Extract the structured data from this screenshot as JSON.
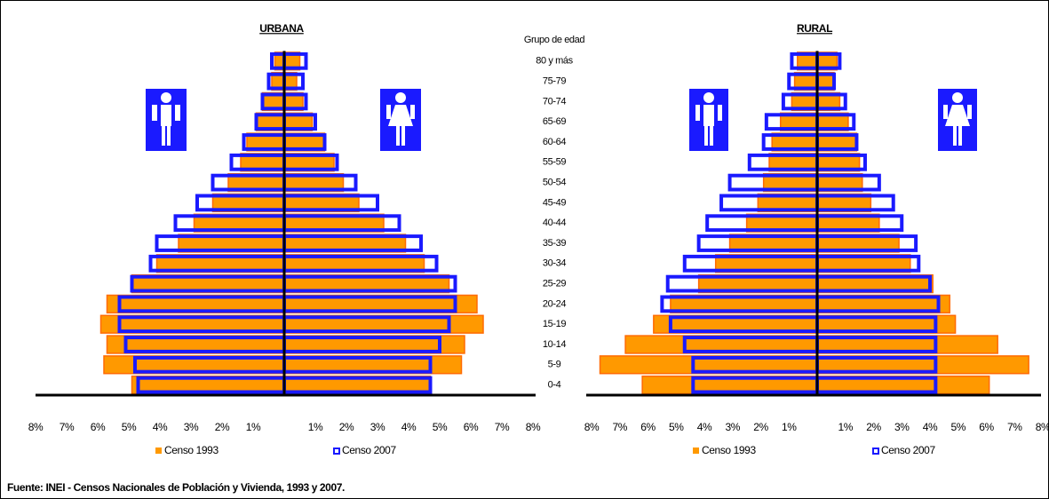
{
  "age_axis": {
    "title": "Grupo de edad",
    "categories": [
      "0-4",
      "5-9",
      "10-14",
      "15-19",
      "20-24",
      "25-29",
      "30-34",
      "35-39",
      "40-44",
      "45-49",
      "50-54",
      "55-59",
      "60-64",
      "65-69",
      "70-74",
      "75-79",
      "80 y más"
    ]
  },
  "chart_data": [
    {
      "type": "pyramid",
      "title": "URBANA",
      "xlim": [
        0,
        8
      ],
      "xticks": [
        {
          "value": 1,
          "label": "1%"
        },
        {
          "value": 2,
          "label": "2%"
        },
        {
          "value": 3,
          "label": "3%"
        },
        {
          "value": 4,
          "label": "4%"
        },
        {
          "value": 5,
          "label": "5%"
        },
        {
          "value": 6,
          "label": "6%"
        },
        {
          "value": 7,
          "label": "7%"
        },
        {
          "value": 8,
          "label": "8%"
        }
      ],
      "series": [
        {
          "name": "Censo 1993",
          "color": "#ff9900",
          "style": "filled",
          "male": [
            4.9,
            5.8,
            5.7,
            5.9,
            5.7,
            4.9,
            4.1,
            3.4,
            2.9,
            2.3,
            1.8,
            1.4,
            1.2,
            0.9,
            0.7,
            0.4,
            0.3
          ],
          "female": [
            4.7,
            5.7,
            5.8,
            6.4,
            6.2,
            5.3,
            4.5,
            3.9,
            3.2,
            2.4,
            1.9,
            1.6,
            1.3,
            0.9,
            0.6,
            0.4,
            0.5
          ]
        },
        {
          "name": "Censo 2007",
          "color": "#1a1aff",
          "style": "outline",
          "male": [
            4.7,
            4.8,
            5.1,
            5.3,
            5.3,
            4.9,
            4.3,
            4.1,
            3.5,
            2.8,
            2.3,
            1.7,
            1.3,
            0.9,
            0.7,
            0.5,
            0.4
          ],
          "female": [
            4.7,
            4.7,
            5.0,
            5.3,
            5.5,
            5.5,
            4.9,
            4.4,
            3.7,
            3.0,
            2.3,
            1.7,
            1.3,
            1.0,
            0.7,
            0.6,
            0.7
          ]
        }
      ]
    },
    {
      "type": "pyramid",
      "title": "RURAL",
      "xlim": [
        0,
        8
      ],
      "xticks": [
        {
          "value": 1,
          "label": "1%"
        },
        {
          "value": 2,
          "label": "2%"
        },
        {
          "value": 3,
          "label": "3%"
        },
        {
          "value": 4,
          "label": "4%"
        },
        {
          "value": 5,
          "label": "5%"
        },
        {
          "value": 6,
          "label": "6%"
        },
        {
          "value": 7,
          "label": "7%"
        },
        {
          "value": 8,
          "label": "8%"
        }
      ],
      "series": [
        {
          "name": "Censo 1993",
          "color": "#ff9900",
          "style": "filled",
          "male": [
            6.2,
            7.7,
            6.8,
            5.8,
            5.2,
            4.2,
            3.6,
            3.1,
            2.5,
            2.1,
            1.9,
            1.7,
            1.6,
            1.3,
            0.9,
            0.8,
            0.7
          ],
          "female": [
            6.1,
            7.5,
            6.4,
            4.9,
            4.7,
            4.1,
            3.3,
            2.9,
            2.2,
            1.9,
            1.6,
            1.5,
            1.4,
            1.1,
            0.8,
            0.6,
            0.7
          ]
        },
        {
          "name": "Censo 2007",
          "color": "#1a1aff",
          "style": "outline",
          "male": [
            4.4,
            4.4,
            4.7,
            5.2,
            5.5,
            5.3,
            4.7,
            4.2,
            3.9,
            3.4,
            3.1,
            2.4,
            1.9,
            1.8,
            1.2,
            1.0,
            0.9
          ],
          "female": [
            4.2,
            4.2,
            4.2,
            4.2,
            4.3,
            4.0,
            3.6,
            3.5,
            3.0,
            2.7,
            2.2,
            1.7,
            1.4,
            1.3,
            1.0,
            0.6,
            0.8
          ]
        }
      ]
    }
  ],
  "source": "Fuente: INEI - Censos Nacionales de Población y Vivienda, 1993 y 2007."
}
